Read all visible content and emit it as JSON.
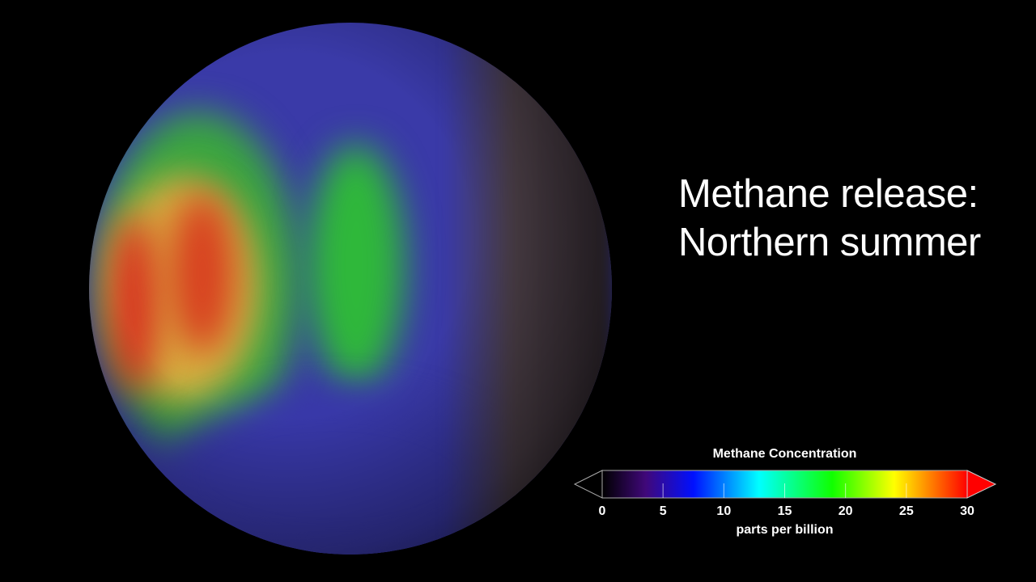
{
  "title_lines": [
    "Methane release:",
    "Northern summer"
  ],
  "legend": {
    "title": "Methane Concentration",
    "unit": "parts per billion",
    "ticks": [
      "0",
      "5",
      "10",
      "15",
      "20",
      "25",
      "30"
    ],
    "range": [
      0,
      30
    ],
    "colors": [
      "#000000",
      "#5a0a8a",
      "#0000ff",
      "#00ffff",
      "#00ff00",
      "#ffff00",
      "#ff8000",
      "#ff0000"
    ]
  }
}
